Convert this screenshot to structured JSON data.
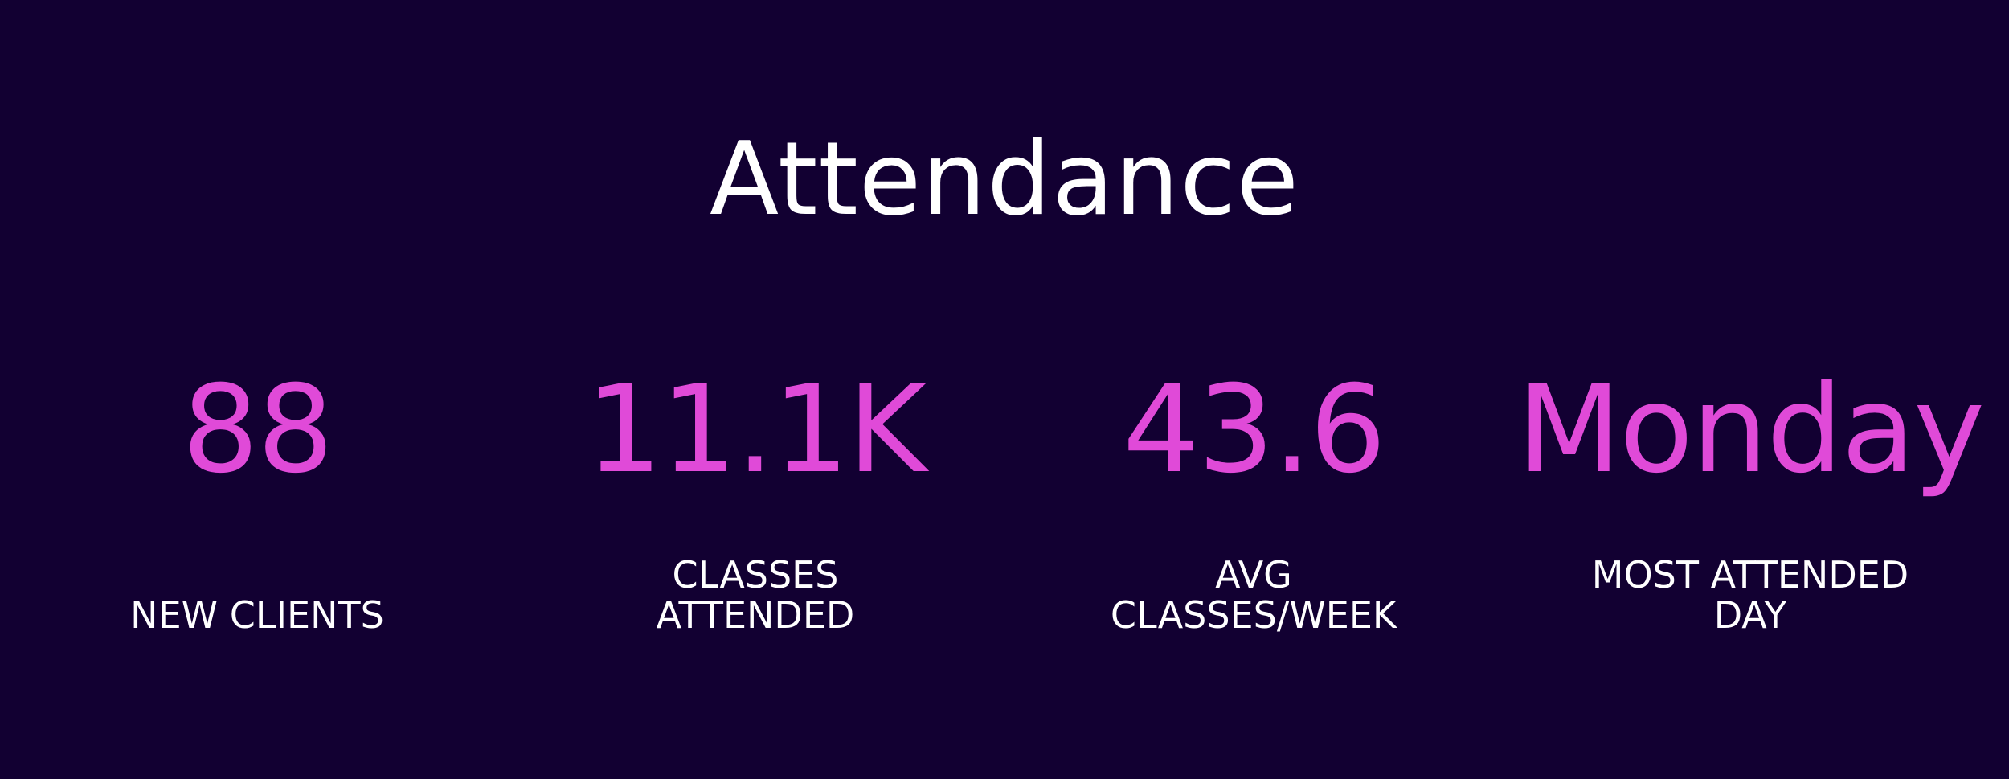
{
  "title": "Attendance",
  "stats": [
    {
      "value": "88",
      "label": "NEW CLIENTS"
    },
    {
      "value": "11.1K",
      "label": "CLASSES\nATTENDED"
    },
    {
      "value": "43.6",
      "label": "AVG\nCLASSES/WEEK"
    },
    {
      "value": "Monday",
      "label": "MOST ATTENDED\nDAY"
    }
  ],
  "colors": {
    "background": "#120032",
    "value": "#e04ad8",
    "text": "#ffffff"
  }
}
